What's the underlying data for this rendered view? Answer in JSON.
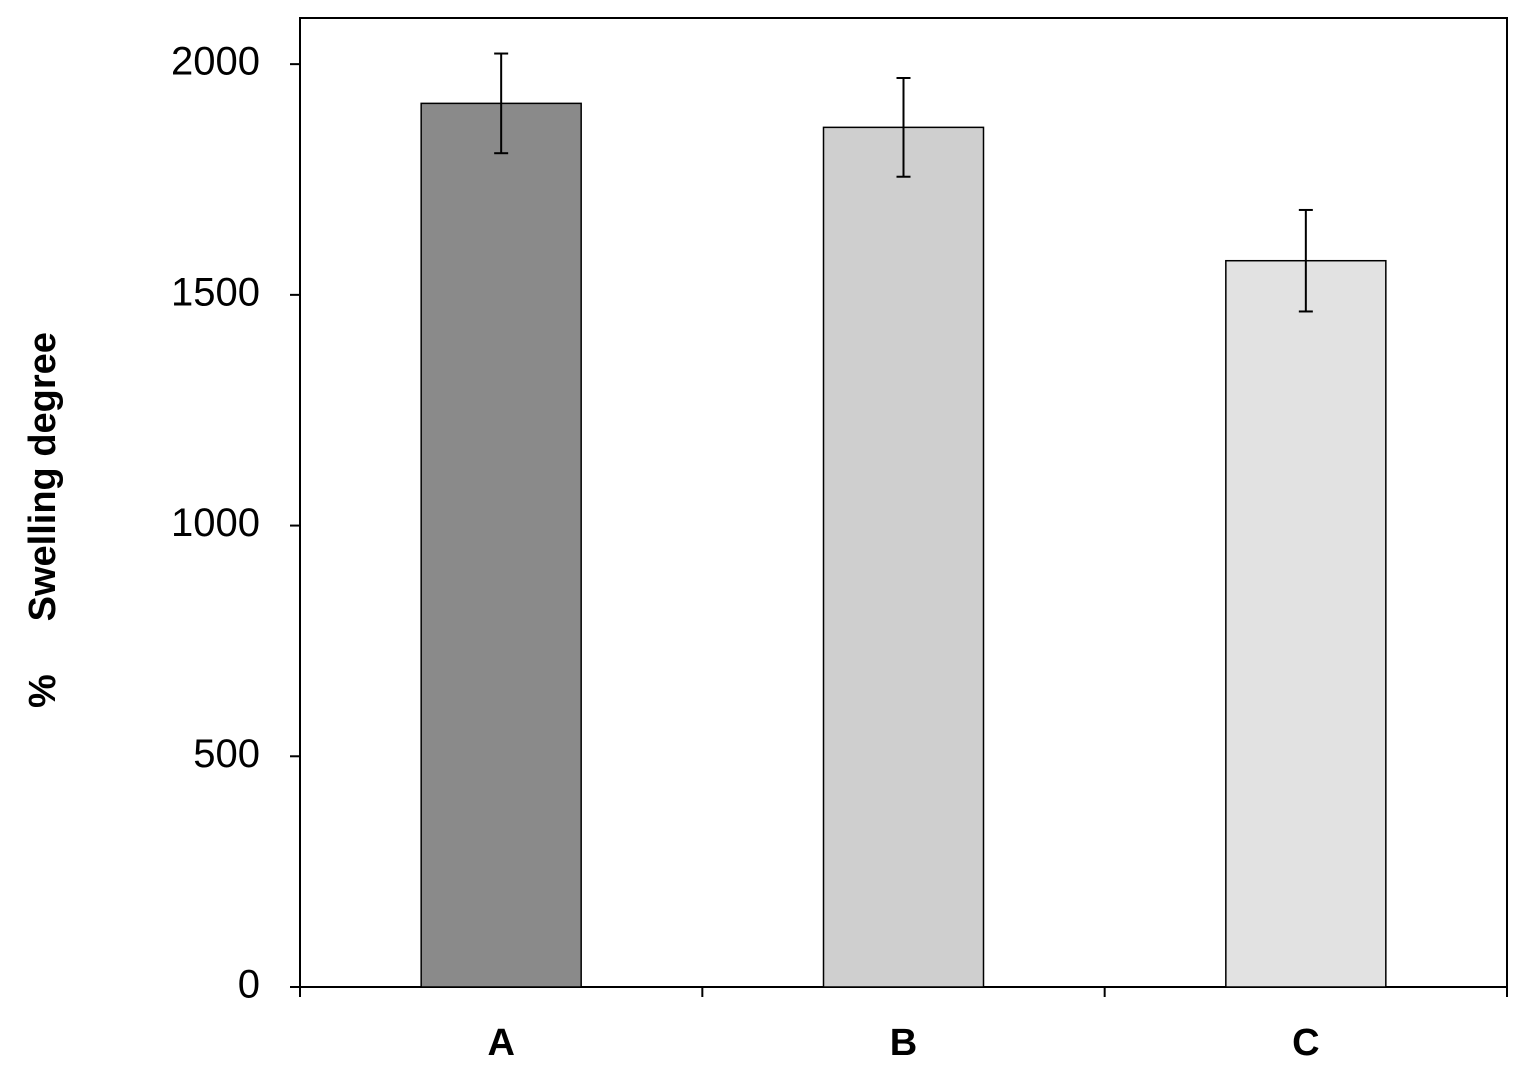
{
  "chart_data": {
    "type": "bar",
    "y_label": "%     Swelling degree",
    "categories": [
      "A",
      "B",
      "C"
    ],
    "values": [
      1915,
      1863,
      1574
    ],
    "errors": [
      108,
      107,
      110
    ],
    "colors": [
      "#8a8a8a",
      "#cfcfcf",
      "#e2e2e2"
    ],
    "ylim": [
      0,
      2100
    ],
    "yticks": [
      0,
      500,
      1000,
      1500,
      2000
    ]
  }
}
